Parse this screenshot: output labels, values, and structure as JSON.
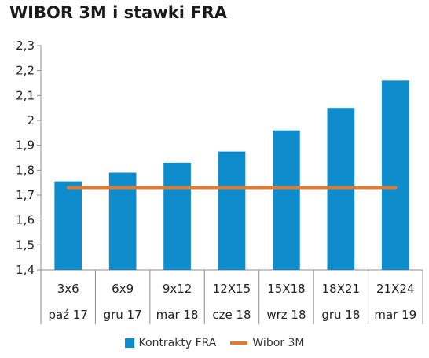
{
  "chart_data": {
    "type": "bar",
    "title": "WIBOR 3M i stawki FRA",
    "categories": [
      "3x6",
      "6x9",
      "9x12",
      "12X15",
      "15X18",
      "18X21",
      "21X24"
    ],
    "subcategories": [
      "paź 17",
      "gru 17",
      "mar 18",
      "cze 18",
      "wrz 18",
      "gru 18",
      "mar 19"
    ],
    "series": [
      {
        "name": "Kontrakty FRA",
        "type": "bar",
        "color": "#0f8ccb",
        "values": [
          1.755,
          1.79,
          1.83,
          1.875,
          1.96,
          2.05,
          2.16
        ]
      },
      {
        "name": "Wibor 3M",
        "type": "line",
        "color": "#e07b34",
        "values": [
          1.73,
          1.73,
          1.73,
          1.73,
          1.73,
          1.73,
          1.73
        ]
      }
    ],
    "ylim": [
      1.4,
      2.3
    ],
    "yticks": [
      "1,4",
      "1,5",
      "1,6",
      "1,7",
      "1,8",
      "1,9",
      "2",
      "2,1",
      "2,2",
      "2,3"
    ],
    "grid": false,
    "legend_position": "bottom"
  }
}
